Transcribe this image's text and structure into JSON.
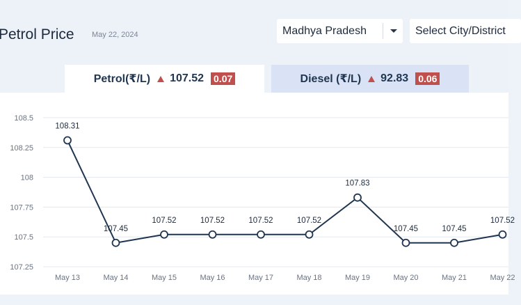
{
  "header": {
    "title": "Petrol Price",
    "date": "May 22, 2024"
  },
  "filters": {
    "state": "Madhya Pradesh",
    "city_placeholder": "Select City/District"
  },
  "tabs": {
    "petrol": {
      "label": "Petrol(₹/L)",
      "price": "107.52",
      "change": "0.07",
      "trend": "up"
    },
    "diesel": {
      "label": "Diesel (₹/L)",
      "price": "92.83",
      "change": "0.06",
      "trend": "up"
    }
  },
  "colors": {
    "line": "#1f3550",
    "up_badge": "#c0504d",
    "active_tab": "#ffffff",
    "inactive_tab": "#d9e3f5"
  },
  "chart_data": {
    "type": "line",
    "categories": [
      "May 13",
      "May 14",
      "May 15",
      "May 16",
      "May 17",
      "May 18",
      "May 19",
      "May 20",
      "May 21",
      "May 22"
    ],
    "values": [
      108.31,
      107.45,
      107.52,
      107.52,
      107.52,
      107.52,
      107.83,
      107.45,
      107.45,
      107.52
    ],
    "data_labels": [
      "108.31",
      "107.45",
      "107.52",
      "107.52",
      "107.52",
      "107.52",
      "107.83",
      "107.45",
      "107.45",
      "107.52"
    ],
    "y_ticks": [
      107.25,
      107.5,
      107.75,
      108,
      108.25,
      108.5
    ],
    "y_tick_labels": [
      "107.25",
      "107.5",
      "107.75",
      "108",
      "108.25",
      "108.5"
    ],
    "ylim": [
      107.25,
      108.5
    ],
    "grid": true
  }
}
